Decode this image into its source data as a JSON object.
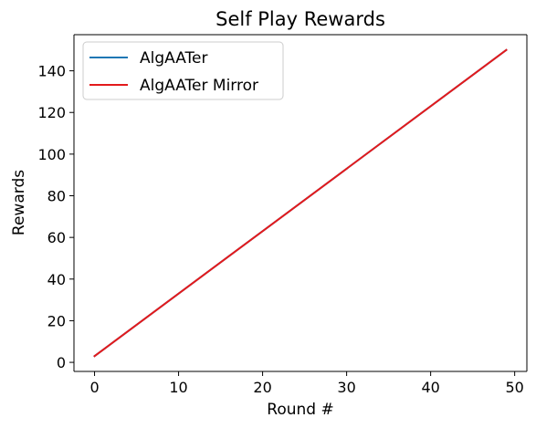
{
  "chart_data": {
    "type": "line",
    "title": "Self Play Rewards",
    "xlabel": "Round #",
    "ylabel": "Rewards",
    "xlim": [
      -2.45,
      51.45
    ],
    "ylim": [
      -4.35,
      157.35
    ],
    "xticks": [
      0,
      10,
      20,
      30,
      40,
      50
    ],
    "yticks": [
      0,
      20,
      40,
      60,
      80,
      100,
      120,
      140
    ],
    "grid": false,
    "legend_position": "top-left",
    "x": [
      0,
      49
    ],
    "series": [
      {
        "name": "AlgAATer",
        "color": "#1f77b4",
        "values": [
          3,
          150
        ]
      },
      {
        "name": "AlgAATer Mirror",
        "color": "#e31a1c",
        "values": [
          3,
          150
        ]
      }
    ]
  }
}
